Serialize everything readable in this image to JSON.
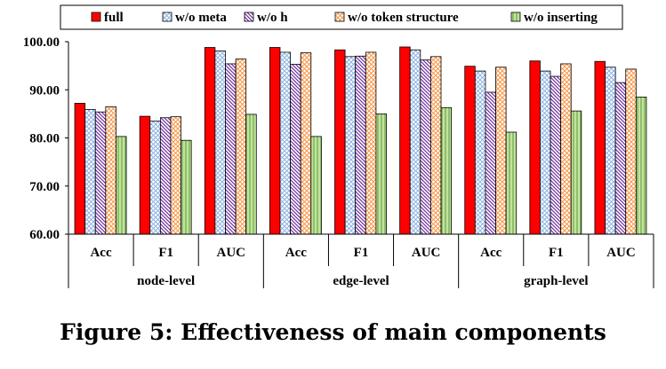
{
  "caption": "Figure 5: Effectiveness of main components",
  "chart_data": {
    "type": "bar",
    "groups": [
      "node-level",
      "edge-level",
      "graph-level"
    ],
    "categories": [
      "Acc",
      "F1",
      "AUC",
      "Acc",
      "F1",
      "AUC",
      "Acc",
      "F1",
      "AUC"
    ],
    "series": [
      {
        "name": "full",
        "values": [
          87.2,
          84.5,
          98.8,
          98.8,
          98.3,
          98.9,
          94.9,
          96.0,
          95.9
        ]
      },
      {
        "name": "w/o meta",
        "values": [
          85.9,
          83.5,
          98.1,
          97.8,
          96.9,
          98.3,
          93.9,
          93.9,
          94.7
        ]
      },
      {
        "name": "w/o h",
        "values": [
          85.4,
          84.2,
          95.4,
          95.3,
          97.0,
          96.2,
          89.5,
          92.8,
          91.5
        ]
      },
      {
        "name": "w/o token structure",
        "values": [
          86.5,
          84.4,
          96.4,
          97.7,
          97.8,
          96.9,
          94.7,
          95.4,
          94.3
        ]
      },
      {
        "name": "w/o inserting",
        "values": [
          80.3,
          79.5,
          84.9,
          80.3,
          85.0,
          86.3,
          81.2,
          85.6,
          88.5
        ]
      }
    ],
    "colors": [
      "#ff0000",
      "#c5d9f1",
      "#b5a0e0",
      "#fbd4b4",
      "#c3e39b"
    ],
    "patterns": [
      "solid",
      "diagonal-cross",
      "diagonal-right",
      "cross-hatch",
      "vertical"
    ],
    "yticks": [
      "60.00",
      "70.00",
      "80.00",
      "90.00",
      "100.00"
    ],
    "ylim": [
      60,
      100
    ],
    "legend_position": "top",
    "xlabel": "",
    "ylabel": ""
  }
}
